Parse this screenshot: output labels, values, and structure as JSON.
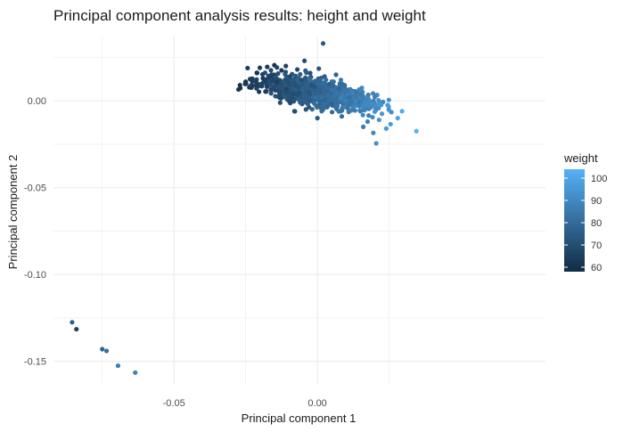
{
  "chart_data": {
    "type": "scatter",
    "title": "Principal component analysis results: height and weight",
    "xlabel": "Principal component 1",
    "ylabel": "Principal component 2",
    "xlim": [
      -0.092,
      0.0795
    ],
    "ylim": [
      -0.1635,
      0.0375
    ],
    "x_ticks": [
      -0.05,
      0.0
    ],
    "x_tick_labels": [
      "-0.05",
      "0.00"
    ],
    "y_ticks": [
      0.0,
      -0.05,
      -0.1,
      -0.15
    ],
    "y_tick_labels": [
      "0.00",
      "-0.05",
      "-0.10",
      "-0.15"
    ],
    "grid": true,
    "colorbar": {
      "title": "weight",
      "min": 58,
      "max": 104,
      "ticks": [
        60,
        70,
        80,
        90,
        100
      ],
      "tick_labels": [
        "60",
        "70",
        "80",
        "90",
        "100"
      ],
      "color_low": "#132B43",
      "color_high": "#56B1F7"
    },
    "legend_position": "right",
    "points": [
      [
        -0.0855,
        -0.1275,
        76
      ],
      [
        -0.084,
        -0.1315,
        66
      ],
      [
        -0.075,
        -0.143,
        78
      ],
      [
        -0.0735,
        -0.144,
        82
      ],
      [
        -0.0695,
        -0.1525,
        86
      ],
      [
        -0.0635,
        -0.1565,
        88
      ],
      [
        -0.0275,
        0.0065,
        62
      ],
      [
        -0.027,
        0.009,
        60
      ],
      [
        -0.025,
        0.011,
        62
      ],
      [
        -0.023,
        0.008,
        64
      ],
      [
        -0.021,
        0.016,
        62
      ],
      [
        -0.019,
        0.013,
        64
      ],
      [
        -0.0175,
        0.0195,
        63
      ],
      [
        -0.016,
        0.015,
        66
      ],
      [
        -0.015,
        0.0205,
        62
      ],
      [
        -0.014,
        0.011,
        65
      ],
      [
        -0.0125,
        0.0175,
        64
      ],
      [
        -0.011,
        0.02,
        66
      ],
      [
        -0.0095,
        0.014,
        67
      ],
      [
        -0.0085,
        0.0045,
        70
      ],
      [
        -0.008,
        -0.006,
        70
      ],
      [
        -0.007,
        0.018,
        68
      ],
      [
        -0.0055,
        0.012,
        70
      ],
      [
        -0.0045,
        0.023,
        69
      ],
      [
        -0.004,
        -0.005,
        72
      ],
      [
        -0.0025,
        0.016,
        71
      ],
      [
        -0.001,
        0.008,
        72
      ],
      [
        0.0,
        -0.01,
        74
      ],
      [
        0.0005,
        0.0185,
        72
      ],
      [
        0.002,
        0.033,
        74
      ],
      [
        0.0025,
        0.014,
        75
      ],
      [
        0.004,
        0.0095,
        76
      ],
      [
        0.005,
        -0.002,
        77
      ],
      [
        0.0065,
        0.015,
        78
      ],
      [
        0.0075,
        0.007,
        79
      ],
      [
        0.0085,
        -0.009,
        80
      ],
      [
        0.0095,
        0.009,
        81
      ],
      [
        0.011,
        0.002,
        82
      ],
      [
        0.012,
        -0.001,
        84
      ],
      [
        0.0135,
        0.005,
        84
      ],
      [
        0.015,
        -0.006,
        86
      ],
      [
        0.016,
        -0.015,
        86
      ],
      [
        0.0175,
        -0.012,
        88
      ],
      [
        0.0185,
        -0.004,
        89
      ],
      [
        0.0195,
        -0.0185,
        90
      ],
      [
        0.0205,
        -0.0245,
        92
      ],
      [
        0.0215,
        -0.011,
        94
      ],
      [
        0.0225,
        -0.0075,
        95
      ],
      [
        0.024,
        -0.016,
        96
      ],
      [
        0.0255,
        -0.0135,
        97
      ],
      [
        0.028,
        -0.01,
        99
      ],
      [
        0.0295,
        -0.006,
        101
      ],
      [
        0.0345,
        -0.0175,
        104
      ]
    ]
  }
}
